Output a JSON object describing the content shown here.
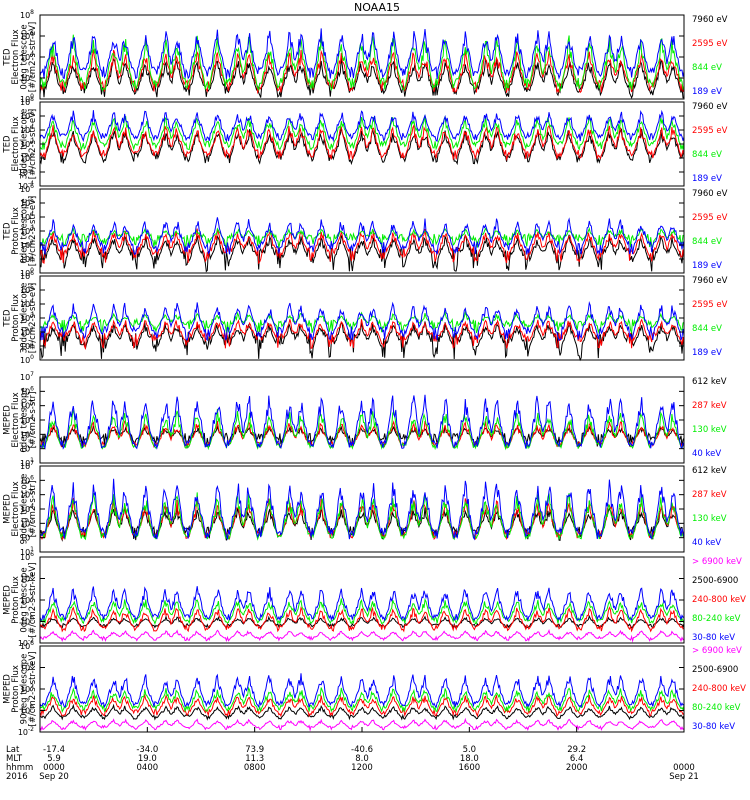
{
  "title": "NOAA15",
  "colors": {
    "blue": "#0000ff",
    "red": "#ff0000",
    "green": "#00ee00",
    "black": "#000000",
    "magenta": "#ff00ff"
  },
  "chart_data": [
    {
      "type": "line",
      "ylabel": [
        "TED",
        "Electron Flux",
        "0deg telescope",
        "[#/cm2-s-str-eV]"
      ],
      "y_log": true,
      "ylim_exp": [
        0,
        8
      ],
      "yticks": [
        {
          "b": "10",
          "e": "0"
        },
        {
          "b": "10",
          "e": "2"
        },
        {
          "b": "10",
          "e": "4"
        },
        {
          "b": "10",
          "e": "6"
        },
        {
          "b": "10",
          "e": "8"
        }
      ],
      "series": [
        {
          "name": "7960 eV",
          "color": "#000000",
          "base": 0.8,
          "noise": 0.7,
          "peak": 4.0
        },
        {
          "name": "2595 eV",
          "color": "#ff0000",
          "base": 1.2,
          "noise": 0.6,
          "peak": 4.8
        },
        {
          "name": "844 eV",
          "color": "#00ee00",
          "base": 1.4,
          "noise": 0.6,
          "peak": 6.2
        },
        {
          "name": "189 eV",
          "color": "#0000ff",
          "base": 2.5,
          "noise": 0.6,
          "peak": 6.8
        }
      ]
    },
    {
      "type": "line",
      "ylabel": [
        "TED",
        "Electron Flux",
        "30deg telescope",
        "[#/cm2-s-str-eV]"
      ],
      "y_log": true,
      "ylim_exp": [
        -4,
        8
      ],
      "yticks": [
        {
          "b": "10",
          "e": "-4"
        },
        {
          "b": "10",
          "e": "-2"
        },
        {
          "b": "10",
          "e": "0"
        },
        {
          "b": "10",
          "e": "2"
        },
        {
          "b": "10",
          "e": "4"
        },
        {
          "b": "10",
          "e": "6"
        },
        {
          "b": "10",
          "e": "8"
        }
      ],
      "series": [
        {
          "name": "7960 eV",
          "color": "#000000",
          "base": 0.0,
          "noise": 0.8,
          "peak": 4.5
        },
        {
          "name": "2595 eV",
          "color": "#ff0000",
          "base": 0.5,
          "noise": 0.7,
          "peak": 5.0
        },
        {
          "name": "844 eV",
          "color": "#00ee00",
          "base": 1.8,
          "noise": 0.6,
          "peak": 6.3
        },
        {
          "name": "189 eV",
          "color": "#0000ff",
          "base": 3.0,
          "noise": 0.6,
          "peak": 7.0
        }
      ]
    },
    {
      "type": "line",
      "ylabel": [
        "TED",
        "Proton Flux",
        "0deg telescope",
        "[#/cm2-s-str-eV]"
      ],
      "y_log": true,
      "ylim_exp": [
        0,
        6
      ],
      "yticks": [
        {
          "b": "10",
          "e": "0"
        },
        {
          "b": "10",
          "e": "1"
        },
        {
          "b": "10",
          "e": "2"
        },
        {
          "b": "10",
          "e": "3"
        },
        {
          "b": "10",
          "e": "4"
        },
        {
          "b": "10",
          "e": "5"
        },
        {
          "b": "10",
          "e": "6"
        }
      ],
      "series": [
        {
          "name": "7960 eV",
          "color": "#000000",
          "base": 0.9,
          "noise": 0.9,
          "peak": 2.8
        },
        {
          "name": "2595 eV",
          "color": "#ff0000",
          "base": 1.3,
          "noise": 0.6,
          "peak": 3.2
        },
        {
          "name": "844 eV",
          "color": "#00ee00",
          "base": 2.3,
          "noise": 0.5,
          "peak": 3.2
        },
        {
          "name": "189 eV",
          "color": "#0000ff",
          "base": 1.8,
          "noise": 0.5,
          "peak": 4.0
        }
      ]
    },
    {
      "type": "line",
      "ylabel": [
        "TED",
        "Proton Flux",
        "30deg telescope",
        "[#/cm2-s-str-eV]"
      ],
      "y_log": true,
      "ylim_exp": [
        0,
        6
      ],
      "yticks": [
        {
          "b": "10",
          "e": "0"
        },
        {
          "b": "10",
          "e": "1"
        },
        {
          "b": "10",
          "e": "2"
        },
        {
          "b": "10",
          "e": "3"
        },
        {
          "b": "10",
          "e": "4"
        },
        {
          "b": "10",
          "e": "5"
        },
        {
          "b": "10",
          "e": "6"
        }
      ],
      "series": [
        {
          "name": "7960 eV",
          "color": "#000000",
          "base": 1.0,
          "noise": 1.0,
          "peak": 2.8
        },
        {
          "name": "2595 eV",
          "color": "#ff0000",
          "base": 1.4,
          "noise": 0.6,
          "peak": 3.0
        },
        {
          "name": "844 eV",
          "color": "#00ee00",
          "base": 2.4,
          "noise": 0.5,
          "peak": 3.4
        },
        {
          "name": "189 eV",
          "color": "#0000ff",
          "base": 1.9,
          "noise": 0.5,
          "peak": 4.2
        }
      ]
    },
    {
      "type": "line",
      "ylabel": [
        "MEPED",
        "Electron Flux",
        "0deg telescope",
        "[#/cm2-s-str]"
      ],
      "y_log": true,
      "ylim_exp": [
        1,
        7
      ],
      "yticks": [
        {
          "b": "10",
          "e": "1"
        },
        {
          "b": "10",
          "e": "2"
        },
        {
          "b": "10",
          "e": "3"
        },
        {
          "b": "10",
          "e": "4"
        },
        {
          "b": "10",
          "e": "5"
        },
        {
          "b": "10",
          "e": "6"
        },
        {
          "b": "10",
          "e": "7"
        }
      ],
      "series": [
        {
          "name": "612 keV",
          "color": "#000000",
          "base": 2.6,
          "noise": 0.5,
          "peak": 3.6
        },
        {
          "name": "287 keV",
          "color": "#ff0000",
          "base": 2.3,
          "noise": 0.2,
          "peak": 4.0
        },
        {
          "name": "130 keV",
          "color": "#00ee00",
          "base": 2.2,
          "noise": 0.2,
          "peak": 4.8
        },
        {
          "name": "40 keV",
          "color": "#0000ff",
          "base": 2.3,
          "noise": 0.3,
          "peak": 6.0
        }
      ]
    },
    {
      "type": "line",
      "ylabel": [
        "MEPED",
        "Electron Flux",
        "90deg telescope",
        "[#/cm2-s-str]"
      ],
      "y_log": true,
      "ylim_exp": [
        1,
        7
      ],
      "yticks": [
        {
          "b": "10",
          "e": "1"
        },
        {
          "b": "10",
          "e": "2"
        },
        {
          "b": "10",
          "e": "3"
        },
        {
          "b": "10",
          "e": "4"
        },
        {
          "b": "10",
          "e": "5"
        },
        {
          "b": "10",
          "e": "6"
        },
        {
          "b": "10",
          "e": "7"
        }
      ],
      "series": [
        {
          "name": "612 keV",
          "color": "#000000",
          "base": 2.3,
          "noise": 0.5,
          "peak": 4.2
        },
        {
          "name": "287 keV",
          "color": "#ff0000",
          "base": 2.2,
          "noise": 0.3,
          "peak": 4.8
        },
        {
          "name": "130 keV",
          "color": "#00ee00",
          "base": 2.1,
          "noise": 0.2,
          "peak": 5.2
        },
        {
          "name": "40 keV",
          "color": "#0000ff",
          "base": 2.3,
          "noise": 0.4,
          "peak": 6.2
        }
      ]
    },
    {
      "type": "line",
      "ylabel": [
        "MEPED",
        "Proton Flux",
        "0deg telescope",
        "[#/cm2-s-str-keV]"
      ],
      "y_log": true,
      "ylim_exp": [
        -2,
        6
      ],
      "yticks": [
        {
          "b": "10",
          "e": "-2"
        },
        {
          "b": "10",
          "e": "0"
        },
        {
          "b": "10",
          "e": "2"
        },
        {
          "b": "10",
          "e": "4"
        },
        {
          "b": "10",
          "e": "6"
        }
      ],
      "series": [
        {
          "name": "> 6900 keV",
          "color": "#ff00ff",
          "base": -1.6,
          "noise": 0.2,
          "peak": -0.8
        },
        {
          "name": "2500-6900",
          "color": "#000000",
          "base": -0.4,
          "noise": 0.2,
          "peak": 0.5
        },
        {
          "name": "240-800 keV",
          "color": "#ff0000",
          "base": -0.6,
          "noise": 0.3,
          "peak": 1.4
        },
        {
          "name": "80-240 keV",
          "color": "#00ee00",
          "base": 0.1,
          "noise": 0.3,
          "peak": 2.2
        },
        {
          "name": "30-80 keV",
          "color": "#0000ff",
          "base": 0.4,
          "noise": 0.3,
          "peak": 3.4
        }
      ]
    },
    {
      "type": "line",
      "ylabel": [
        "MEPED",
        "Proton Flux",
        "90deg telescope",
        "[#/cm2-s-str-keV]"
      ],
      "y_log": true,
      "ylim_exp": [
        -2,
        6
      ],
      "yticks": [
        {
          "b": "10",
          "e": "-2"
        },
        {
          "b": "10",
          "e": "0"
        },
        {
          "b": "10",
          "e": "2"
        },
        {
          "b": "10",
          "e": "4"
        },
        {
          "b": "10",
          "e": "6"
        }
      ],
      "series": [
        {
          "name": "> 6900 keV",
          "color": "#ff00ff",
          "base": -1.6,
          "noise": 0.2,
          "peak": -0.8
        },
        {
          "name": "2500-6900",
          "color": "#000000",
          "base": -0.6,
          "noise": 0.2,
          "peak": 0.5
        },
        {
          "name": "240-800 keV",
          "color": "#ff0000",
          "base": -0.2,
          "noise": 0.3,
          "peak": 1.5
        },
        {
          "name": "80-240 keV",
          "color": "#00ee00",
          "base": 0.2,
          "noise": 0.3,
          "peak": 2.2
        },
        {
          "name": "30-80 keV",
          "color": "#0000ff",
          "base": 0.6,
          "noise": 0.3,
          "peak": 3.6
        }
      ]
    }
  ],
  "xaxis": {
    "row_labels": [
      "Lat",
      "MLT",
      "hhmm",
      "2016"
    ],
    "ticks": [
      {
        "lat": "-17.4",
        "mlt": "5.9",
        "hhmm": "0000",
        "date": "Sep 20"
      },
      {
        "lat": "-34.0",
        "mlt": "19.0",
        "hhmm": "0400",
        "date": ""
      },
      {
        "lat": "73.9",
        "mlt": "11.3",
        "hhmm": "0800",
        "date": ""
      },
      {
        "lat": "-40.6",
        "mlt": "8.0",
        "hhmm": "1200",
        "date": ""
      },
      {
        "lat": "5.0",
        "mlt": "18.0",
        "hhmm": "1600",
        "date": ""
      },
      {
        "lat": "29.2",
        "mlt": "6.4",
        "hhmm": "2000",
        "date": ""
      },
      {
        "lat": "",
        "mlt": "",
        "hhmm": "0000",
        "date": "Sep 21"
      }
    ]
  }
}
